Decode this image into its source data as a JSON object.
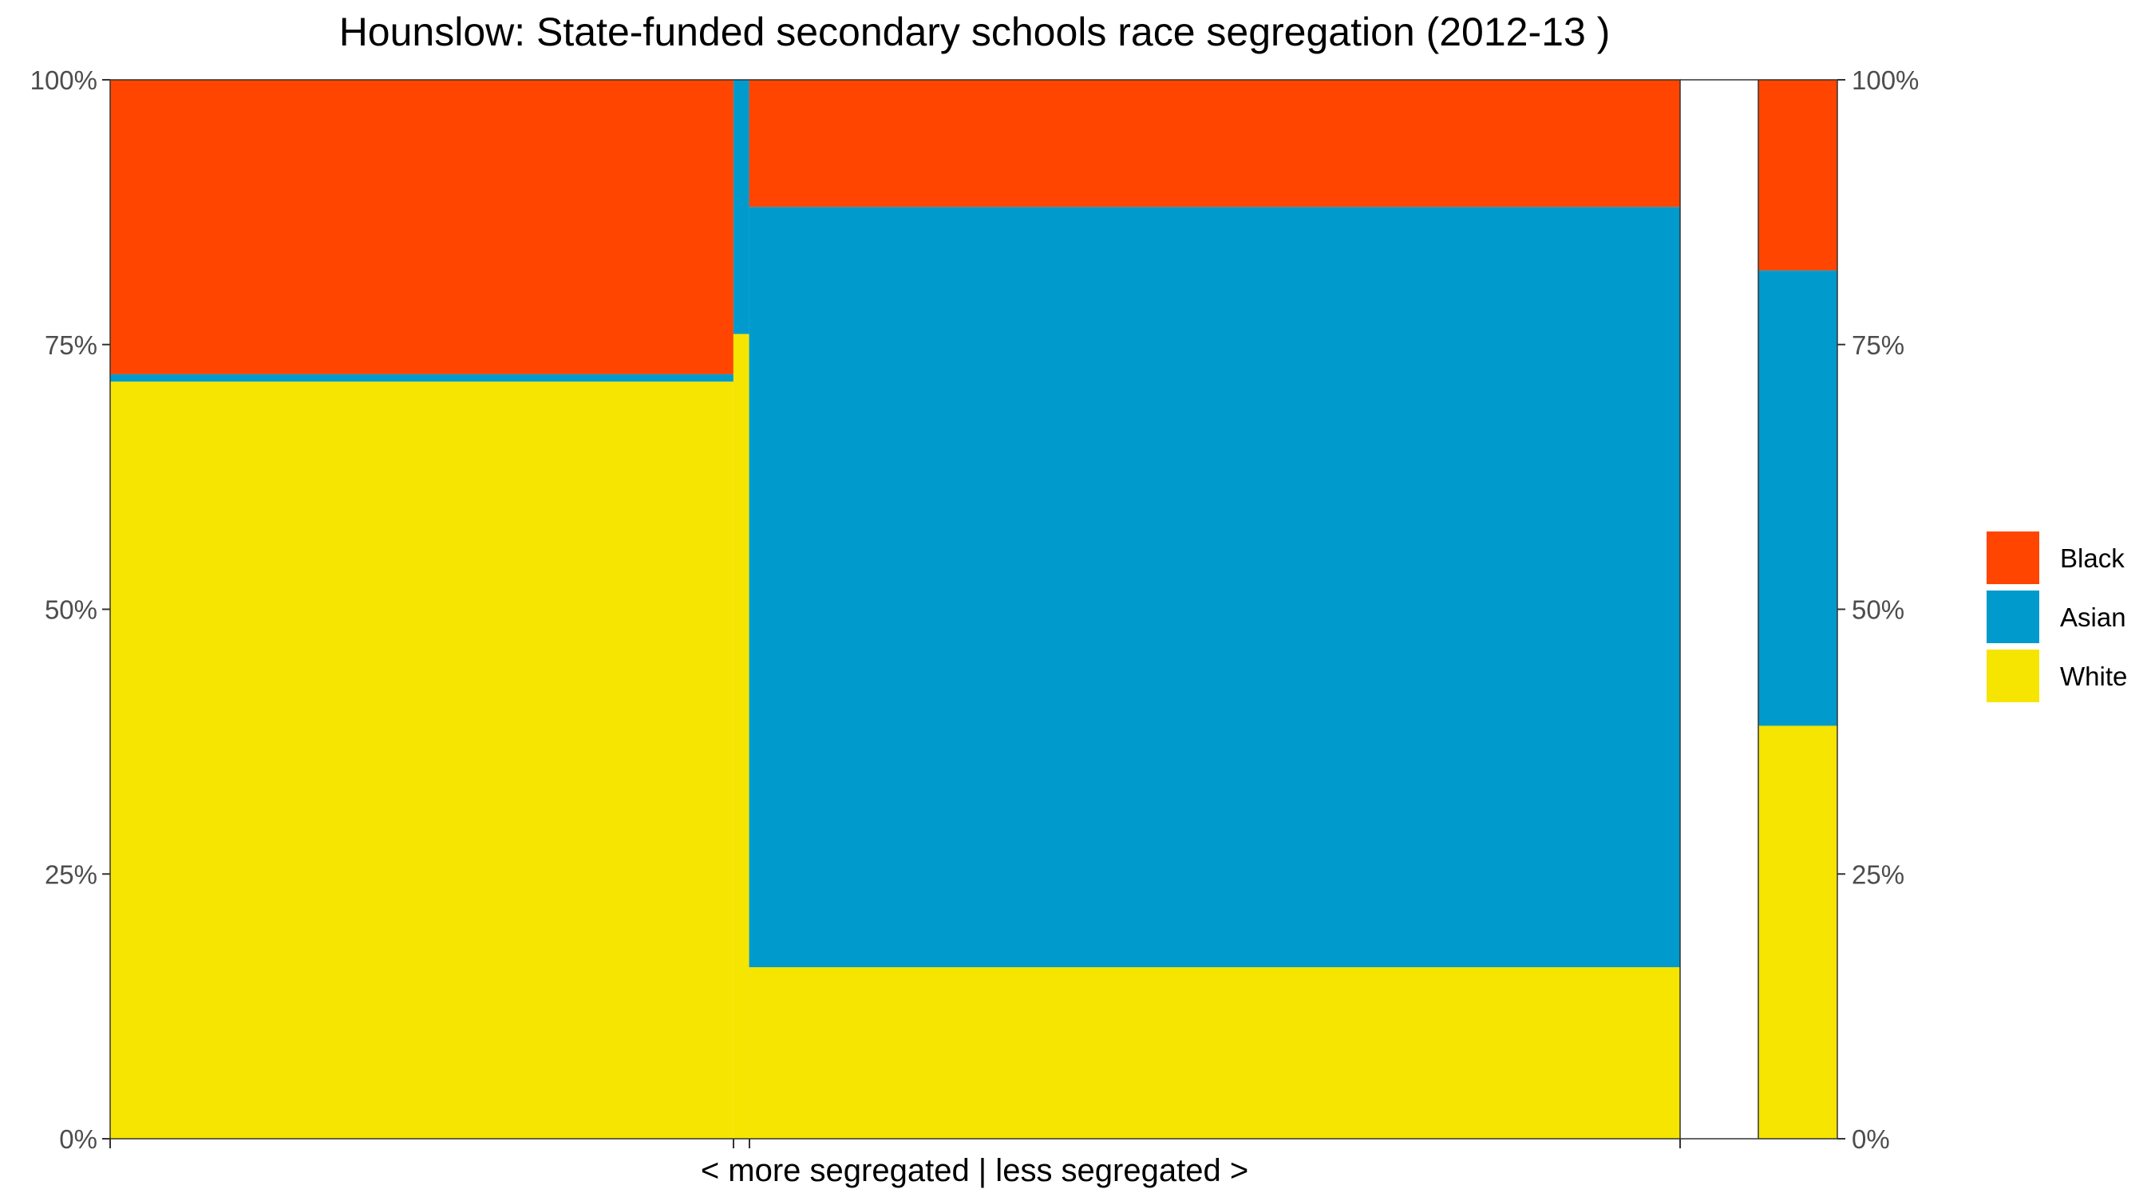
{
  "chart_data": {
    "type": "mosaic",
    "title": "Hounslow: State-funded secondary schools race segregation (2012-13 )",
    "xlabel": "< more segregated | less segregated >",
    "ylabel": "",
    "ylim": [
      0,
      100
    ],
    "y_ticks": [
      "0%",
      "25%",
      "50%",
      "75%",
      "100%"
    ],
    "y_tick_values": [
      0,
      25,
      50,
      75,
      100
    ],
    "legend": {
      "placement": "right",
      "entries": [
        {
          "name": "Black",
          "color": "#FF4500"
        },
        {
          "name": "Asian",
          "color": "#009ACD"
        },
        {
          "name": "White",
          "color": "#F5E500"
        }
      ]
    },
    "columns": [
      {
        "x_start": 0,
        "x_end": 39.7,
        "segments": [
          {
            "group": "White",
            "from": 0,
            "to": 71.5
          },
          {
            "group": "Asian",
            "from": 71.5,
            "to": 72.2
          },
          {
            "group": "Black",
            "from": 72.2,
            "to": 100
          }
        ]
      },
      {
        "x_start": 39.7,
        "x_end": 40.7,
        "segments": [
          {
            "group": "White",
            "from": 0,
            "to": 76
          },
          {
            "group": "Asian",
            "from": 76,
            "to": 100
          }
        ]
      },
      {
        "x_start": 40.7,
        "x_end": 100,
        "segments": [
          {
            "group": "White",
            "from": 0,
            "to": 16.2
          },
          {
            "group": "Asian",
            "from": 16.2,
            "to": 88
          },
          {
            "group": "Black",
            "from": 88,
            "to": 100
          }
        ]
      }
    ],
    "total_column": {
      "segments": [
        {
          "group": "White",
          "from": 0,
          "to": 39
        },
        {
          "group": "Asian",
          "from": 39,
          "to": 82
        },
        {
          "group": "Black",
          "from": 82,
          "to": 100
        }
      ]
    }
  }
}
